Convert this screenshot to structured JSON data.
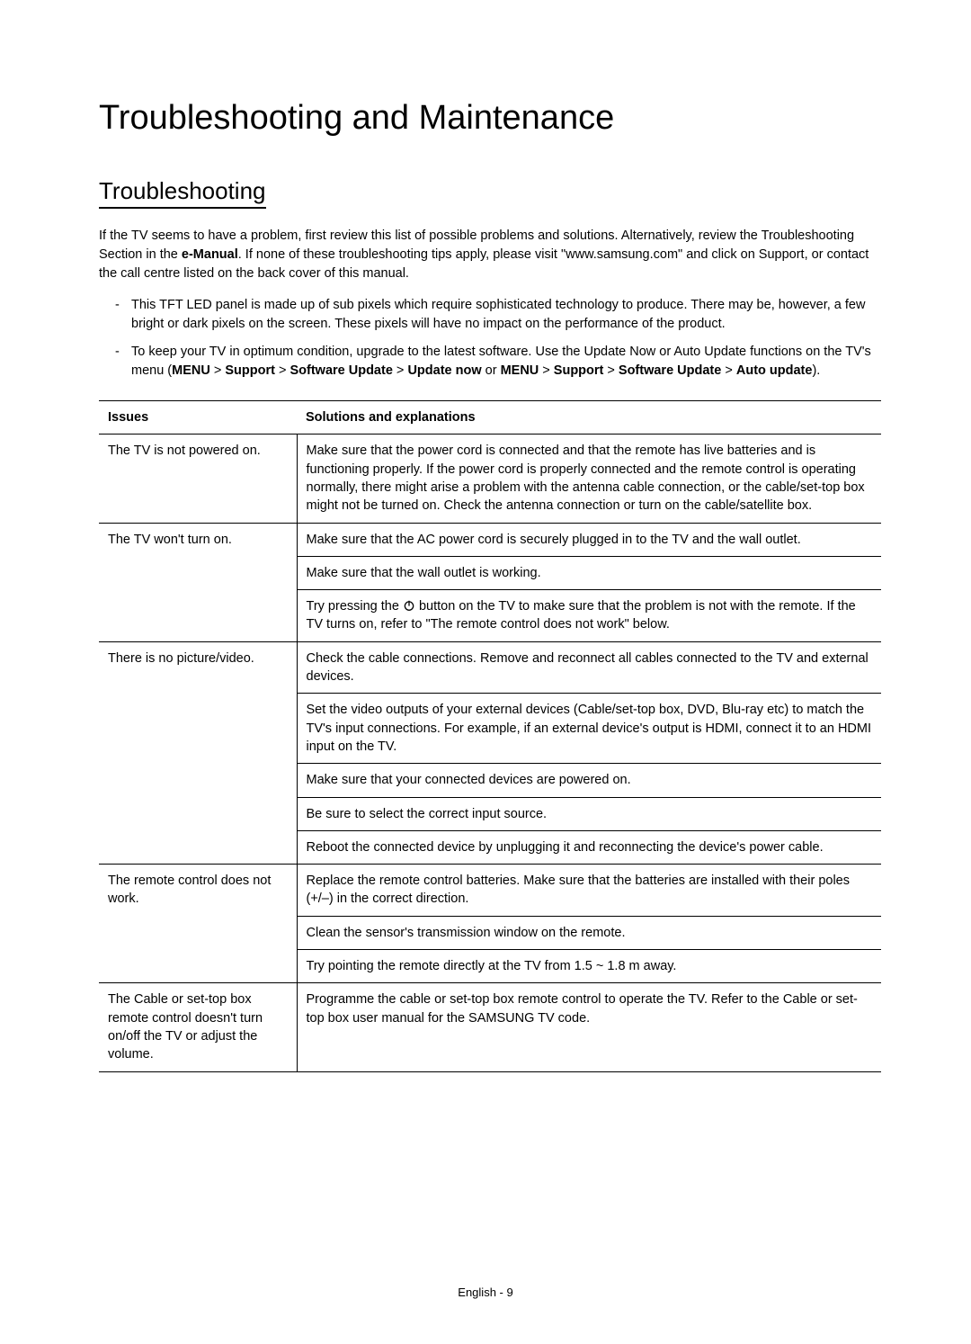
{
  "title": "Troubleshooting and Maintenance",
  "section_title": "Troubleshooting",
  "intro": {
    "prefix": "If the TV seems to have a problem, first review this list of possible problems and solutions. Alternatively, review the Troubleshooting Section in the ",
    "bold1": "e-Manual",
    "suffix": ". If none of these troubleshooting tips apply, please visit \"www.samsung.com\" and click on Support, or contact the call centre listed on the back cover of this manual."
  },
  "notes": {
    "note1": "This TFT LED panel is made up of sub pixels which require sophisticated technology to produce. There may be, however, a few bright or dark pixels on the screen. These pixels will have no impact on the performance of the product.",
    "note2_prefix": "To keep your TV in optimum condition, upgrade to the latest software. Use the Update Now or Auto Update functions on the TV's menu (",
    "path1_a": "MENU",
    "sep": " > ",
    "path1_b": "Support",
    "path1_c": "Software Update",
    "path1_d": "Update now",
    "or": " or ",
    "path2_a": "MENU",
    "path2_b": "Support",
    "path2_c": "Software Update",
    "path2_d": "Auto update",
    "note2_suffix": ")."
  },
  "table": {
    "header_issues": "Issues",
    "header_solutions": "Solutions and explanations",
    "rows": [
      {
        "issue": "The TV is not powered on.",
        "solutions": [
          "Make sure that the power cord is connected and that the remote has live batteries and is functioning properly. If the power cord is properly connected and the remote control is operating normally, there might arise a problem with the antenna cable connection, or the cable/set-top box might not be turned on. Check the antenna connection or turn on the cable/satellite box."
        ]
      },
      {
        "issue": "The TV won't turn on.",
        "solutions": [
          "Make sure that the AC power cord is securely plugged in to the TV and the wall outlet.",
          "Make sure that the wall outlet is working.",
          "__POWER__Try pressing the |ICON| button on the TV to make sure that the problem is not with the remote. If the TV turns on, refer to \"The remote control does not work\" below."
        ]
      },
      {
        "issue": "There is no picture/video.",
        "solutions": [
          "Check the cable connections. Remove and reconnect all cables connected to the TV and external devices.",
          "Set the video outputs of your external devices (Cable/set-top box, DVD, Blu-ray etc) to match the TV's input connections. For example, if an external device's output is HDMI, connect it to an HDMI input on the TV.",
          "Make sure that your connected devices are powered on.",
          "Be sure to select the correct input source.",
          "Reboot the connected device by unplugging it and reconnecting the device's power cable."
        ]
      },
      {
        "issue": "The remote control does not work.",
        "solutions": [
          "Replace the remote control batteries. Make sure that the batteries are installed with their poles (+/–) in the correct direction.",
          "Clean the sensor's transmission window on the remote.",
          "Try pointing the remote directly at the TV from 1.5 ~ 1.8 m away."
        ]
      },
      {
        "issue": "The Cable or set-top box remote control doesn't turn on/off the TV or adjust the volume.",
        "solutions": [
          "Programme the cable or set-top box remote control to operate the TV. Refer to the Cable or set-top box user manual for the SAMSUNG TV code."
        ]
      }
    ]
  },
  "footer": "English - 9",
  "colors": {
    "text": "#000000",
    "background": "#ffffff",
    "rule": "#000000"
  },
  "fonts": {
    "title_size_pt": 29,
    "section_size_pt": 20,
    "body_size_pt": 11
  }
}
